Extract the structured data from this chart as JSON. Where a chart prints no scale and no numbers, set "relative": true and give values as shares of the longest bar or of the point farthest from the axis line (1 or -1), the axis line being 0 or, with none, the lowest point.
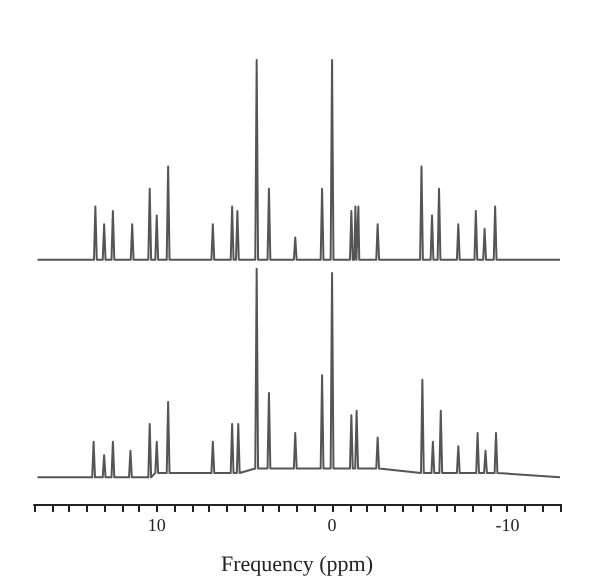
{
  "chart_data": {
    "type": "line",
    "xlabel": "Frequency (ppm)",
    "relative": true,
    "marker": "none",
    "grid": false,
    "xlim": [
      17,
      -13
    ],
    "xticks": [
      {
        "value": 17,
        "label": null
      },
      {
        "value": 16,
        "label": null
      },
      {
        "value": 15,
        "label": null
      },
      {
        "value": 14,
        "label": null
      },
      {
        "value": 13,
        "label": null
      },
      {
        "value": 12,
        "label": null
      },
      {
        "value": 11,
        "label": null
      },
      10,
      {
        "value": 9,
        "label": null
      },
      {
        "value": 8,
        "label": null
      },
      {
        "value": 7,
        "label": null
      },
      {
        "value": 6,
        "label": null
      },
      {
        "value": 5,
        "label": null
      },
      {
        "value": 4,
        "label": null
      },
      {
        "value": 3,
        "label": null
      },
      {
        "value": 2,
        "label": null
      },
      {
        "value": 1,
        "label": null
      },
      0,
      {
        "value": -1,
        "label": null
      },
      {
        "value": -2,
        "label": null
      },
      {
        "value": -3,
        "label": null
      },
      {
        "value": -4,
        "label": null
      },
      {
        "value": -5,
        "label": null
      },
      {
        "value": -6,
        "label": null
      },
      {
        "value": -7,
        "label": null
      },
      {
        "value": -8,
        "label": null
      },
      {
        "value": -9,
        "label": null
      },
      -10,
      {
        "value": -11,
        "label": null
      },
      {
        "value": -12,
        "label": null
      },
      {
        "value": -13,
        "label": null
      }
    ],
    "series": [
      {
        "color": "#555555",
        "x": [
          16.8,
          13.58,
          13.5,
          13.42,
          13.08,
          13.0,
          12.92,
          12.58,
          12.5,
          12.42,
          11.48,
          11.4,
          11.32,
          10.48,
          10.4,
          10.32,
          10.08,
          10.0,
          9.92,
          9.43,
          9.35,
          9.27,
          6.88,
          6.8,
          6.72,
          5.78,
          5.7,
          5.62,
          5.48,
          5.4,
          5.32,
          4.38,
          4.3,
          4.22,
          3.68,
          3.6,
          3.52,
          2.18,
          2.1,
          2.02,
          0.65,
          0.57,
          0.49,
          0.08,
          0,
          -0.08,
          -1.02,
          -1.1,
          -1.18,
          -1.27,
          -1.33,
          -1.39,
          -1.45,
          -1.5,
          -1.55,
          -2.52,
          -2.6,
          -2.68,
          -5.02,
          -5.1,
          -5.18,
          -5.62,
          -5.7,
          -5.78,
          -6.02,
          -6.1,
          -6.18,
          -7.12,
          -7.2,
          -7.28,
          -8.12,
          -8.2,
          -8.28,
          -8.62,
          -8.7,
          -8.78,
          -9.22,
          -9.3,
          -9.38,
          -13
        ],
        "values": [
          0.55,
          0.55,
          0.67,
          0.55,
          0.55,
          0.63,
          0.55,
          0.55,
          0.66,
          0.55,
          0.55,
          0.63,
          0.55,
          0.55,
          0.71,
          0.55,
          0.55,
          0.65,
          0.55,
          0.55,
          0.76,
          0.55,
          0.55,
          0.63,
          0.55,
          0.55,
          0.67,
          0.55,
          0.55,
          0.66,
          0.55,
          0.55,
          1,
          0.55,
          0.55,
          0.71,
          0.55,
          0.55,
          0.6,
          0.55,
          0.55,
          0.71,
          0.55,
          0.55,
          1,
          0.55,
          0.55,
          0.66,
          0.55,
          0.55,
          0.67,
          0.55,
          0.55,
          0.67,
          0.55,
          0.55,
          0.63,
          0.55,
          0.55,
          0.76,
          0.55,
          0.55,
          0.65,
          0.55,
          0.55,
          0.71,
          0.55,
          0.55,
          0.63,
          0.55,
          0.55,
          0.66,
          0.55,
          0.55,
          0.62,
          0.55,
          0.55,
          0.67,
          0.55,
          0.55
        ]
      },
      {
        "color": "#555555",
        "x": [
          16.8,
          13.68,
          13.6,
          13.52,
          13.08,
          13.0,
          12.92,
          12.58,
          12.5,
          12.42,
          11.58,
          11.5,
          11.42,
          10.48,
          10.4,
          10.32,
          10.08,
          10.0,
          9.92,
          9.43,
          9.35,
          9.27,
          6.88,
          6.8,
          6.72,
          5.78,
          5.7,
          5.62,
          5.43,
          5.35,
          5.27,
          4.38,
          4.3,
          4.22,
          3.68,
          3.6,
          3.52,
          2.18,
          2.1,
          2.02,
          0.65,
          0.57,
          0.49,
          0.08,
          0,
          -0.08,
          -1.02,
          -1.1,
          -1.18,
          -1.32,
          -1.4,
          -1.48,
          -2.52,
          -2.6,
          -2.68,
          -5.07,
          -5.15,
          -5.23,
          -5.67,
          -5.75,
          -5.83,
          -6.12,
          -6.2,
          -6.28,
          -7.12,
          -7.2,
          -7.28,
          -8.22,
          -8.3,
          -8.38,
          -8.67,
          -8.75,
          -8.83,
          -9.27,
          -9.35,
          -9.43,
          -13
        ],
        "values": [
          0.06,
          0.06,
          0.14,
          0.06,
          0.06,
          0.11,
          0.06,
          0.06,
          0.14,
          0.06,
          0.06,
          0.12,
          0.06,
          0.06,
          0.18,
          0.06,
          0.07,
          0.14,
          0.07,
          0.07,
          0.23,
          0.07,
          0.07,
          0.14,
          0.07,
          0.07,
          0.18,
          0.07,
          0.07,
          0.18,
          0.07,
          0.08,
          0.53,
          0.08,
          0.08,
          0.25,
          0.08,
          0.08,
          0.16,
          0.08,
          0.08,
          0.29,
          0.08,
          0.08,
          0.52,
          0.08,
          0.08,
          0.2,
          0.08,
          0.08,
          0.21,
          0.08,
          0.08,
          0.15,
          0.08,
          0.07,
          0.28,
          0.07,
          0.07,
          0.14,
          0.07,
          0.07,
          0.21,
          0.07,
          0.07,
          0.13,
          0.07,
          0.07,
          0.16,
          0.07,
          0.07,
          0.12,
          0.07,
          0.07,
          0.16,
          0.07,
          0.06
        ]
      }
    ]
  }
}
